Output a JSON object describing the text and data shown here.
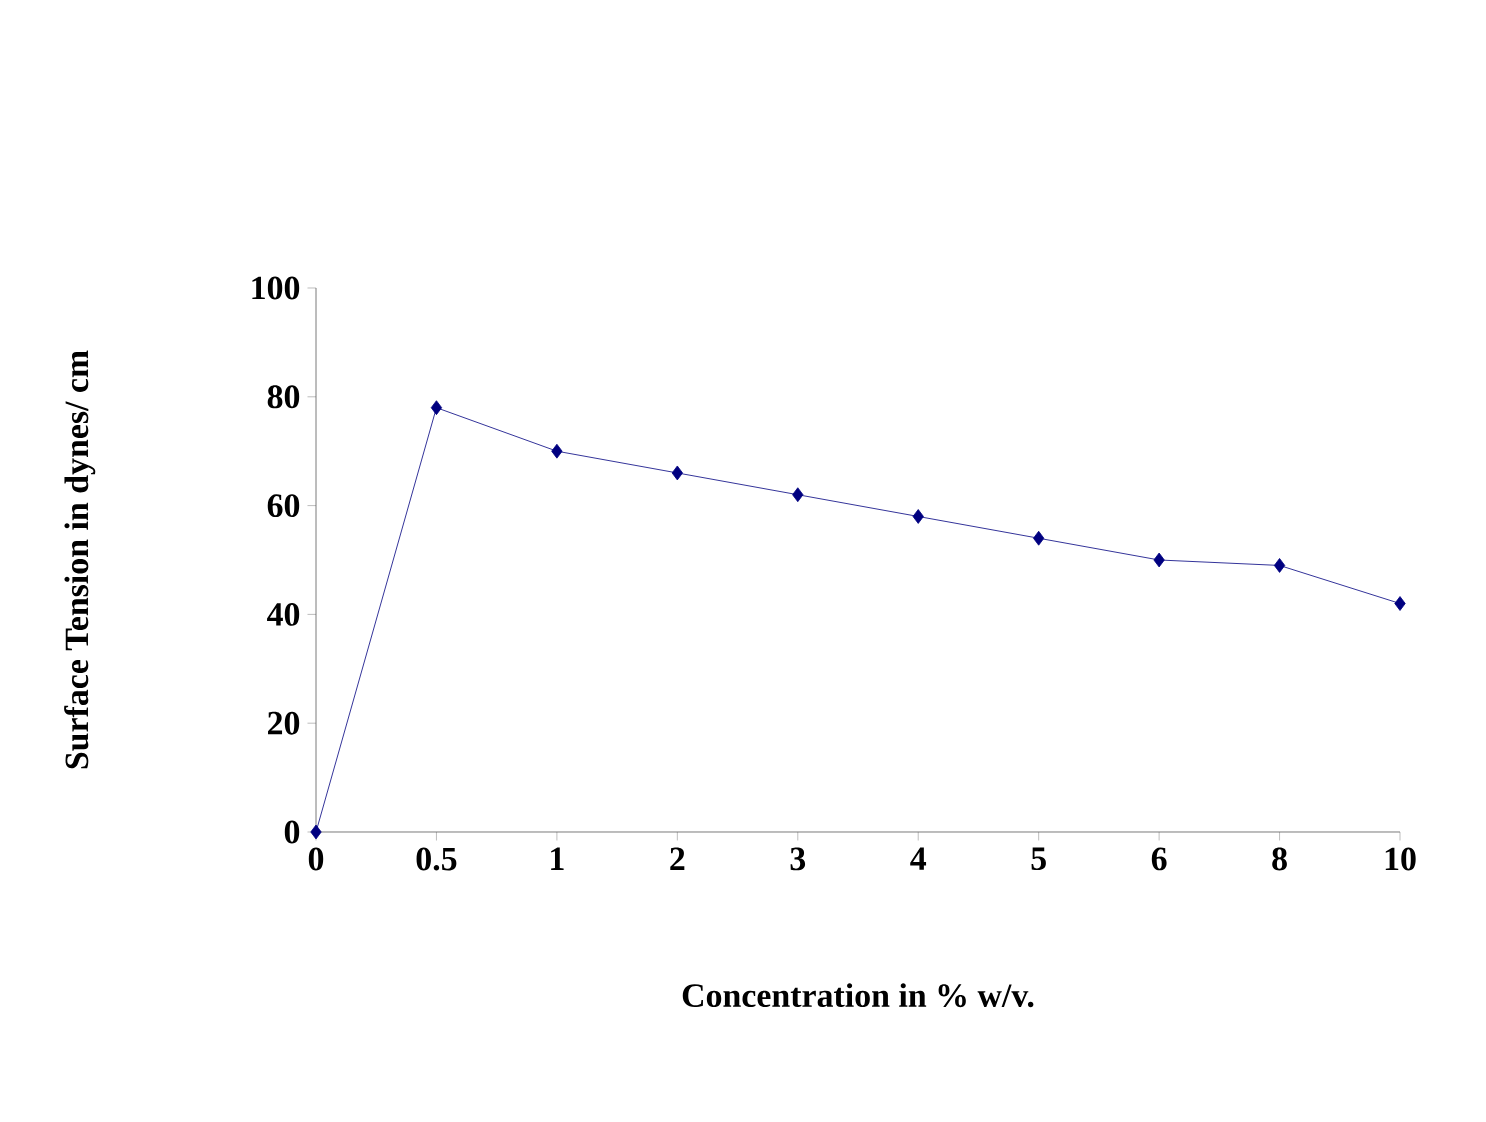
{
  "chart_data": {
    "type": "line",
    "xlabel": "Concentration in % w/v.",
    "ylabel": "Surface Tension in dynes/ cm",
    "categories": [
      "0",
      "0.5",
      "1",
      "2",
      "3",
      "4",
      "5",
      "6",
      "8",
      "10"
    ],
    "values": [
      0,
      78,
      70,
      66,
      62,
      58,
      54,
      50,
      49,
      42
    ],
    "color": "#000080",
    "marker": "diamond",
    "ylim": [
      0,
      100
    ],
    "yticks": [
      0,
      20,
      40,
      60,
      80,
      100
    ]
  }
}
